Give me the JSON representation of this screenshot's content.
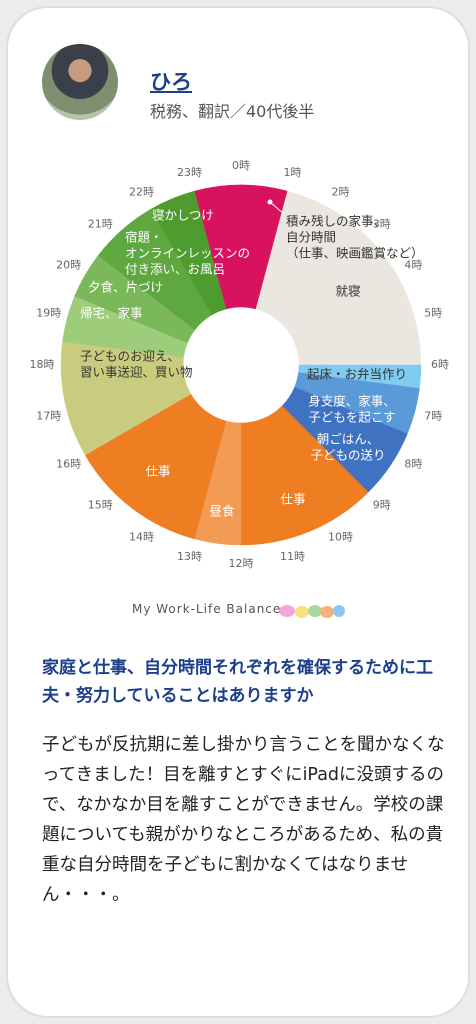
{
  "profile": {
    "name": "ひろ",
    "role": "税務、翻訳／40代後半"
  },
  "chart_data": {
    "type": "pie",
    "footer": "My Work-Life Balance",
    "start": 23,
    "categories": [
      [
        "積み残しの家事、",
        "自分時間",
        "（仕事、映画鑑賞など）"
      ],
      [
        "就寝"
      ],
      [
        "起床・お弁当作り"
      ],
      [
        "身支度、家事、",
        "子どもを起こす"
      ],
      [
        "朝ごはん、",
        "子どもの送り"
      ],
      [
        "仕事"
      ],
      [
        "昼食"
      ],
      [
        "仕事"
      ],
      [
        "子どものお迎え、",
        "習い事送迎、買い物"
      ],
      [
        "帰宅、家事"
      ],
      [
        "夕食、片づけ"
      ],
      [
        "宿題・",
        "オンラインレッスンの",
        "付き添い、お風呂"
      ],
      [
        "寝かしつけ"
      ]
    ],
    "values": [
      2,
      5,
      0.5,
      1,
      1.5,
      3,
      1,
      3,
      2.5,
      1,
      1,
      1.5,
      1
    ],
    "colors": [
      "#d9125f",
      "#ebe6e0",
      "#7fccf1",
      "#5b9ad8",
      "#3f73c2",
      "#ef7d22",
      "#f29b55",
      "#ef7d22",
      "#c9cc7e",
      "#9dcd7b",
      "#7bb85a",
      "#5fa73f",
      "#4e9b2f"
    ],
    "label_colors": [
      "#333333",
      "#333333",
      "#333333",
      "#ffffff",
      "#ffffff",
      "#ffffff",
      "#ffffff",
      "#ffffff",
      "#333333",
      "#ffffff",
      "#ffffff",
      "#ffffff",
      "#ffffff"
    ],
    "ticks": [
      {
        "value": 0,
        "label": "0時"
      },
      {
        "value": 1,
        "label": "1時"
      },
      {
        "value": 2,
        "label": "2時"
      },
      {
        "value": 3,
        "label": "3時"
      },
      {
        "value": 4,
        "label": "4時"
      },
      {
        "value": 5,
        "label": "5時"
      },
      {
        "value": 6,
        "label": "6時"
      },
      {
        "value": 7,
        "label": "7時"
      },
      {
        "value": 8,
        "label": "8時"
      },
      {
        "value": 9,
        "label": "9時"
      },
      {
        "value": 10,
        "label": "10時"
      },
      {
        "value": 11,
        "label": "11時"
      },
      {
        "value": 12,
        "label": "12時"
      },
      {
        "value": 13,
        "label": "13時"
      },
      {
        "value": 14,
        "label": "14時"
      },
      {
        "value": 15,
        "label": "15時"
      },
      {
        "value": 16,
        "label": "16時"
      },
      {
        "value": 17,
        "label": "17時"
      },
      {
        "value": 18,
        "label": "18時"
      },
      {
        "value": 19,
        "label": "19時"
      },
      {
        "value": 20,
        "label": "20時"
      },
      {
        "value": 21,
        "label": "21時"
      },
      {
        "value": 22,
        "label": "22時"
      },
      {
        "value": 23,
        "label": "23時"
      }
    ]
  },
  "question": "家庭と仕事、自分時間それぞれを確保するために工夫・努力していることはありますか",
  "answer": "子どもが反抗期に差し掛かり言うことを聞かなくなってきました！目を離すとすぐにiPadに没頭するので、なかなか目を離すことができません。学校の課題についても親がかりなところがあるため、私の貴重な自分時間を子どもに割かなくてはなりません・・・。"
}
